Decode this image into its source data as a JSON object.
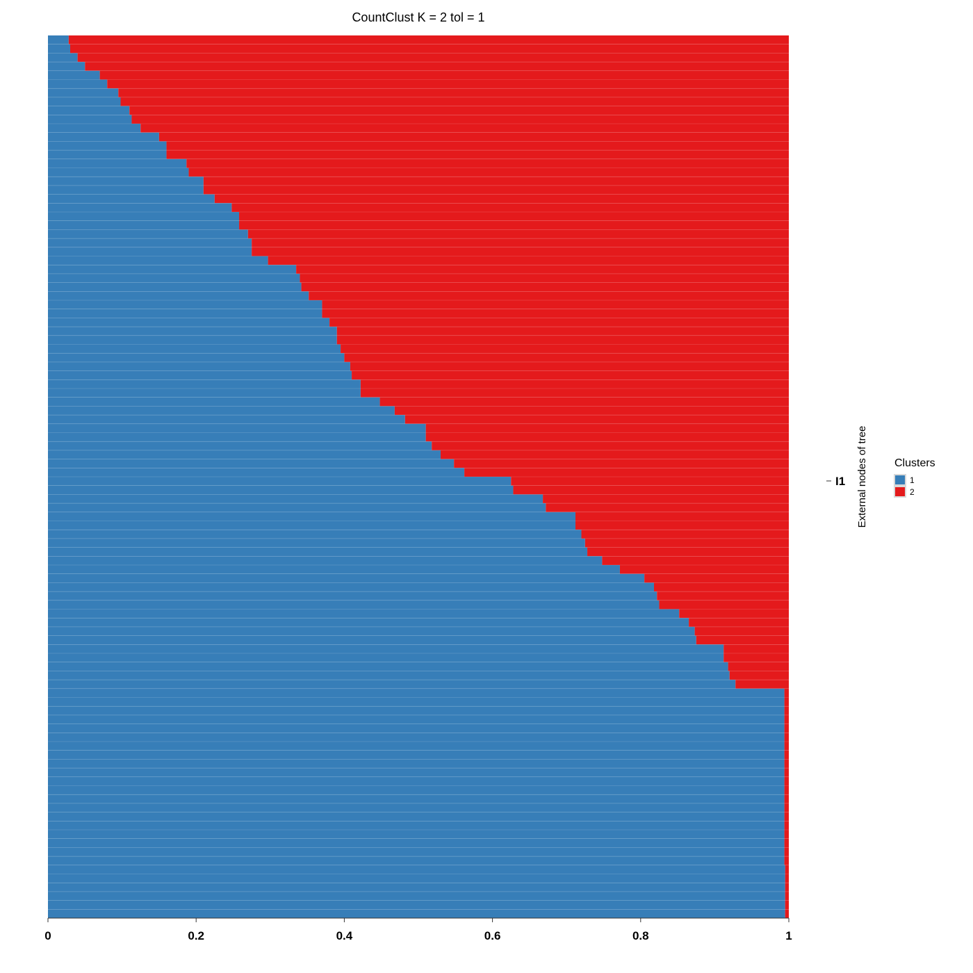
{
  "chart_data": {
    "type": "bar",
    "orientation": "horizontal",
    "stacked": true,
    "title": "CountClust K =  2 tol =  1",
    "xlabel": "",
    "ylabel": "External nodes of tree",
    "facet_label": "I1",
    "xlim": [
      0,
      1
    ],
    "xticks": [
      "0",
      "0.2",
      "0.4",
      "0.6",
      "0.8",
      "1"
    ],
    "grid": false,
    "legend": {
      "title": "Clusters",
      "position": "right",
      "entries": [
        {
          "label": "1",
          "color": "#377EB8"
        },
        {
          "label": "2",
          "color": "#E41A1C"
        }
      ]
    },
    "series": [
      {
        "name": "1",
        "color": "#377EB8",
        "values": [
          0.028,
          0.03,
          0.04,
          0.05,
          0.07,
          0.08,
          0.095,
          0.098,
          0.11,
          0.113,
          0.125,
          0.15,
          0.16,
          0.16,
          0.187,
          0.19,
          0.21,
          0.21,
          0.225,
          0.248,
          0.258,
          0.258,
          0.27,
          0.275,
          0.275,
          0.297,
          0.335,
          0.34,
          0.342,
          0.352,
          0.37,
          0.37,
          0.38,
          0.39,
          0.39,
          0.395,
          0.4,
          0.408,
          0.41,
          0.422,
          0.422,
          0.448,
          0.468,
          0.482,
          0.51,
          0.51,
          0.518,
          0.53,
          0.548,
          0.562,
          0.625,
          0.628,
          0.668,
          0.672,
          0.712,
          0.712,
          0.72,
          0.725,
          0.728,
          0.748,
          0.772,
          0.805,
          0.818,
          0.822,
          0.825,
          0.852,
          0.865,
          0.873,
          0.875,
          0.912,
          0.912,
          0.918,
          0.92,
          0.928,
          0.994,
          0.994,
          0.994,
          0.994,
          0.994,
          0.994,
          0.994,
          0.994,
          0.994,
          0.994,
          0.994,
          0.994,
          0.994,
          0.994,
          0.994,
          0.994,
          0.994,
          0.994,
          0.994,
          0.994,
          0.995,
          0.995,
          0.995,
          0.995,
          0.995,
          0.995
        ]
      },
      {
        "name": "2",
        "color": "#E41A1C",
        "values": "complement of series 1 (1 - value)"
      }
    ]
  }
}
